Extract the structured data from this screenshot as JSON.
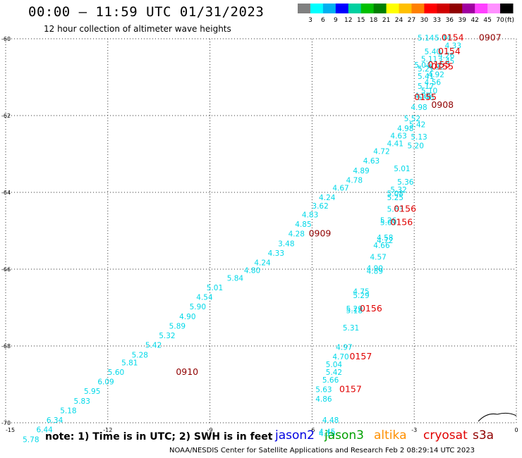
{
  "header": {
    "title": "00:00 – 11:59 UTC 01/31/2023",
    "subtitle": "12 hour collection of altimeter wave heights"
  },
  "colorbar": {
    "labels": [
      "3",
      "6",
      "9",
      "12",
      "15",
      "18",
      "21",
      "24",
      "27",
      "30",
      "33",
      "36",
      "39",
      "42",
      "45",
      "70"
    ],
    "unit": "(ft)",
    "colors": [
      "#808080",
      "#00ffff",
      "#00b0f0",
      "#0000ff",
      "#00d0a0",
      "#00c000",
      "#008000",
      "#ffff00",
      "#ffc000",
      "#ff8000",
      "#ff0000",
      "#d00000",
      "#900000",
      "#a000a0",
      "#ff40ff",
      "#ff90ff",
      "#000000"
    ]
  },
  "footer": {
    "note": "note: 1) Time is in UTC; 2) SWH is in feet",
    "credit": "NOAA/NESDIS Center for Satellite Applications and Research   Feb  2 08:29:14 UTC 2023"
  },
  "satellites": [
    {
      "name": "jason2",
      "color": "#0000e0"
    },
    {
      "name": "jason3",
      "color": "#00a000"
    },
    {
      "name": "altika",
      "color": "#ff9000"
    },
    {
      "name": "cryosat",
      "color": "#e00000"
    },
    {
      "name": "s3a",
      "color": "#900000"
    }
  ],
  "chart_data": {
    "type": "scatter",
    "xlim": [
      -15,
      0
    ],
    "ylim": [
      -70,
      -60
    ],
    "x_ticks": [
      "-15",
      "-12",
      "-9",
      "-6",
      "-3",
      "0"
    ],
    "y_ticks": [
      "-60",
      "-62",
      "-64",
      "-66",
      "-68",
      "-70"
    ],
    "grid": true,
    "swh_labels": [
      {
        "lon": -2.9,
        "lat": -60.05,
        "text": "5.14"
      },
      {
        "lon": -2.4,
        "lat": -60.05,
        "text": "5.44"
      },
      {
        "lon": -2.1,
        "lat": -60.25,
        "text": "4.33"
      },
      {
        "lon": -2.7,
        "lat": -60.4,
        "text": "5.40"
      },
      {
        "lon": -2.3,
        "lat": -60.5,
        "text": "4.26"
      },
      {
        "lon": -2.8,
        "lat": -60.6,
        "text": "5.11"
      },
      {
        "lon": -2.3,
        "lat": -60.65,
        "text": "3.45"
      },
      {
        "lon": -3.0,
        "lat": -60.75,
        "text": "5.04"
      },
      {
        "lon": -2.6,
        "lat": -60.8,
        "text": "4.92"
      },
      {
        "lon": -2.9,
        "lat": -60.85,
        "text": "5.21"
      },
      {
        "lon": -2.6,
        "lat": -61.0,
        "text": "4.92"
      },
      {
        "lon": -2.9,
        "lat": -61.05,
        "text": "5.41"
      },
      {
        "lon": -2.7,
        "lat": -61.2,
        "text": "4.56"
      },
      {
        "lon": -2.9,
        "lat": -61.3,
        "text": "5.17"
      },
      {
        "lon": -2.8,
        "lat": -61.42,
        "text": "5.10"
      },
      {
        "lon": -3.0,
        "lat": -61.55,
        "text": "4.99"
      },
      {
        "lon": -2.9,
        "lat": -61.6,
        "text": "5.46"
      },
      {
        "lon": -3.1,
        "lat": -61.85,
        "text": "4.98"
      },
      {
        "lon": -3.3,
        "lat": -62.15,
        "text": "5.52"
      },
      {
        "lon": -3.15,
        "lat": -62.3,
        "text": "5.42"
      },
      {
        "lon": -3.5,
        "lat": -62.4,
        "text": "4.98"
      },
      {
        "lon": -3.7,
        "lat": -62.6,
        "text": "4.63"
      },
      {
        "lon": -3.1,
        "lat": -62.62,
        "text": "5.13"
      },
      {
        "lon": -3.8,
        "lat": -62.8,
        "text": "4.41"
      },
      {
        "lon": -3.2,
        "lat": -62.85,
        "text": "5.20"
      },
      {
        "lon": -4.2,
        "lat": -63.0,
        "text": "4.72"
      },
      {
        "lon": -4.5,
        "lat": -63.25,
        "text": "4.63"
      },
      {
        "lon": -3.6,
        "lat": -63.45,
        "text": "5.01"
      },
      {
        "lon": -4.8,
        "lat": -63.5,
        "text": "4.89"
      },
      {
        "lon": -5.0,
        "lat": -63.75,
        "text": "4.78"
      },
      {
        "lon": -3.5,
        "lat": -63.8,
        "text": "5.36"
      },
      {
        "lon": -5.4,
        "lat": -63.95,
        "text": "4.67"
      },
      {
        "lon": -3.7,
        "lat": -64.0,
        "text": "5.32"
      },
      {
        "lon": -3.8,
        "lat": -64.1,
        "text": "5.08"
      },
      {
        "lon": -5.8,
        "lat": -64.2,
        "text": "4.24"
      },
      {
        "lon": -3.8,
        "lat": -64.2,
        "text": "5.25"
      },
      {
        "lon": -6.0,
        "lat": -64.42,
        "text": "3.62"
      },
      {
        "lon": -3.8,
        "lat": -64.5,
        "text": "5.63"
      },
      {
        "lon": -6.3,
        "lat": -64.65,
        "text": "4.83"
      },
      {
        "lon": -4.0,
        "lat": -64.8,
        "text": "5.26"
      },
      {
        "lon": -4.0,
        "lat": -64.85,
        "text": "5.09"
      },
      {
        "lon": -6.5,
        "lat": -64.9,
        "text": "4.85"
      },
      {
        "lon": -6.7,
        "lat": -65.15,
        "text": "4.28"
      },
      {
        "lon": -4.1,
        "lat": -65.25,
        "text": "4.58"
      },
      {
        "lon": -4.1,
        "lat": -65.32,
        "text": "4.72"
      },
      {
        "lon": -7.0,
        "lat": -65.4,
        "text": "3.48"
      },
      {
        "lon": -4.2,
        "lat": -65.45,
        "text": "4.66"
      },
      {
        "lon": -7.3,
        "lat": -65.65,
        "text": "4.33"
      },
      {
        "lon": -4.3,
        "lat": -65.75,
        "text": "4.57"
      },
      {
        "lon": -7.7,
        "lat": -65.9,
        "text": "4.24"
      },
      {
        "lon": -4.4,
        "lat": -66.05,
        "text": "4.90"
      },
      {
        "lon": -4.4,
        "lat": -66.12,
        "text": "4.89"
      },
      {
        "lon": -8.0,
        "lat": -66.1,
        "text": "4.80"
      },
      {
        "lon": -8.5,
        "lat": -66.3,
        "text": "5.84"
      },
      {
        "lon": -9.1,
        "lat": -66.55,
        "text": "5.01"
      },
      {
        "lon": -4.8,
        "lat": -66.65,
        "text": "4.75"
      },
      {
        "lon": -4.8,
        "lat": -66.75,
        "text": "5.29"
      },
      {
        "lon": -9.4,
        "lat": -66.8,
        "text": "4.54"
      },
      {
        "lon": -9.6,
        "lat": -67.05,
        "text": "5.90"
      },
      {
        "lon": -5.0,
        "lat": -67.1,
        "text": "5.29"
      },
      {
        "lon": -5.0,
        "lat": -67.15,
        "text": "5.18"
      },
      {
        "lon": -9.9,
        "lat": -67.3,
        "text": "4.90"
      },
      {
        "lon": -10.2,
        "lat": -67.55,
        "text": "5.89"
      },
      {
        "lon": -5.1,
        "lat": -67.6,
        "text": "5.31"
      },
      {
        "lon": -10.5,
        "lat": -67.8,
        "text": "5.32"
      },
      {
        "lon": -10.9,
        "lat": -68.05,
        "text": "5.42"
      },
      {
        "lon": -5.3,
        "lat": -68.1,
        "text": "4.97"
      },
      {
        "lon": -11.3,
        "lat": -68.3,
        "text": "5.28"
      },
      {
        "lon": -5.4,
        "lat": -68.35,
        "text": "4.70"
      },
      {
        "lon": -11.6,
        "lat": -68.5,
        "text": "5.81"
      },
      {
        "lon": -5.6,
        "lat": -68.55,
        "text": "5.04"
      },
      {
        "lon": -12.0,
        "lat": -68.75,
        "text": "5.60"
      },
      {
        "lon": -5.6,
        "lat": -68.75,
        "text": "5.42"
      },
      {
        "lon": -12.3,
        "lat": -69.0,
        "text": "6.09"
      },
      {
        "lon": -5.7,
        "lat": -68.95,
        "text": "5.66"
      },
      {
        "lon": -12.7,
        "lat": -69.25,
        "text": "5.95"
      },
      {
        "lon": -5.9,
        "lat": -69.2,
        "text": "5.63"
      },
      {
        "lon": -13.0,
        "lat": -69.5,
        "text": "5.83"
      },
      {
        "lon": -5.9,
        "lat": -69.45,
        "text": "4.86"
      },
      {
        "lon": -13.4,
        "lat": -69.75,
        "text": "5.18"
      },
      {
        "lon": -13.8,
        "lat": -70.0,
        "text": "6.34"
      },
      {
        "lon": -5.7,
        "lat": -70.0,
        "text": "4.48"
      },
      {
        "lon": -14.1,
        "lat": -70.25,
        "text": "6.44"
      },
      {
        "lon": -5.8,
        "lat": -70.3,
        "text": "4.45"
      },
      {
        "lon": -5.8,
        "lat": -70.35,
        "text": "4.19"
      },
      {
        "lon": -14.5,
        "lat": -70.5,
        "text": "5.78"
      }
    ],
    "time_labels": [
      {
        "lon": -2.2,
        "lat": -60.05,
        "text": "0154",
        "sat": "cryosat"
      },
      {
        "lon": -1.1,
        "lat": -60.05,
        "text": "0907",
        "sat": "s3a"
      },
      {
        "lon": -2.3,
        "lat": -60.4,
        "text": "0154",
        "sat": "cryosat"
      },
      {
        "lon": -2.6,
        "lat": -60.75,
        "text": "0155",
        "sat": "cryosat"
      },
      {
        "lon": -2.5,
        "lat": -60.8,
        "text": "0155",
        "sat": "cryosat"
      },
      {
        "lon": -3.0,
        "lat": -61.6,
        "text": "0155",
        "sat": "cryosat"
      },
      {
        "lon": -2.5,
        "lat": -61.8,
        "text": "0908",
        "sat": "s3a"
      },
      {
        "lon": -3.6,
        "lat": -64.5,
        "text": "0156",
        "sat": "cryosat"
      },
      {
        "lon": -3.7,
        "lat": -64.85,
        "text": "0156",
        "sat": "cryosat"
      },
      {
        "lon": -6.1,
        "lat": -65.15,
        "text": "0909",
        "sat": "s3a"
      },
      {
        "lon": -4.6,
        "lat": -67.1,
        "text": "0156",
        "sat": "cryosat"
      },
      {
        "lon": -4.9,
        "lat": -68.35,
        "text": "0157",
        "sat": "cryosat"
      },
      {
        "lon": -5.2,
        "lat": -69.2,
        "text": "0157",
        "sat": "cryosat"
      },
      {
        "lon": -10.0,
        "lat": -68.75,
        "text": "0910",
        "sat": "s3a"
      }
    ]
  }
}
